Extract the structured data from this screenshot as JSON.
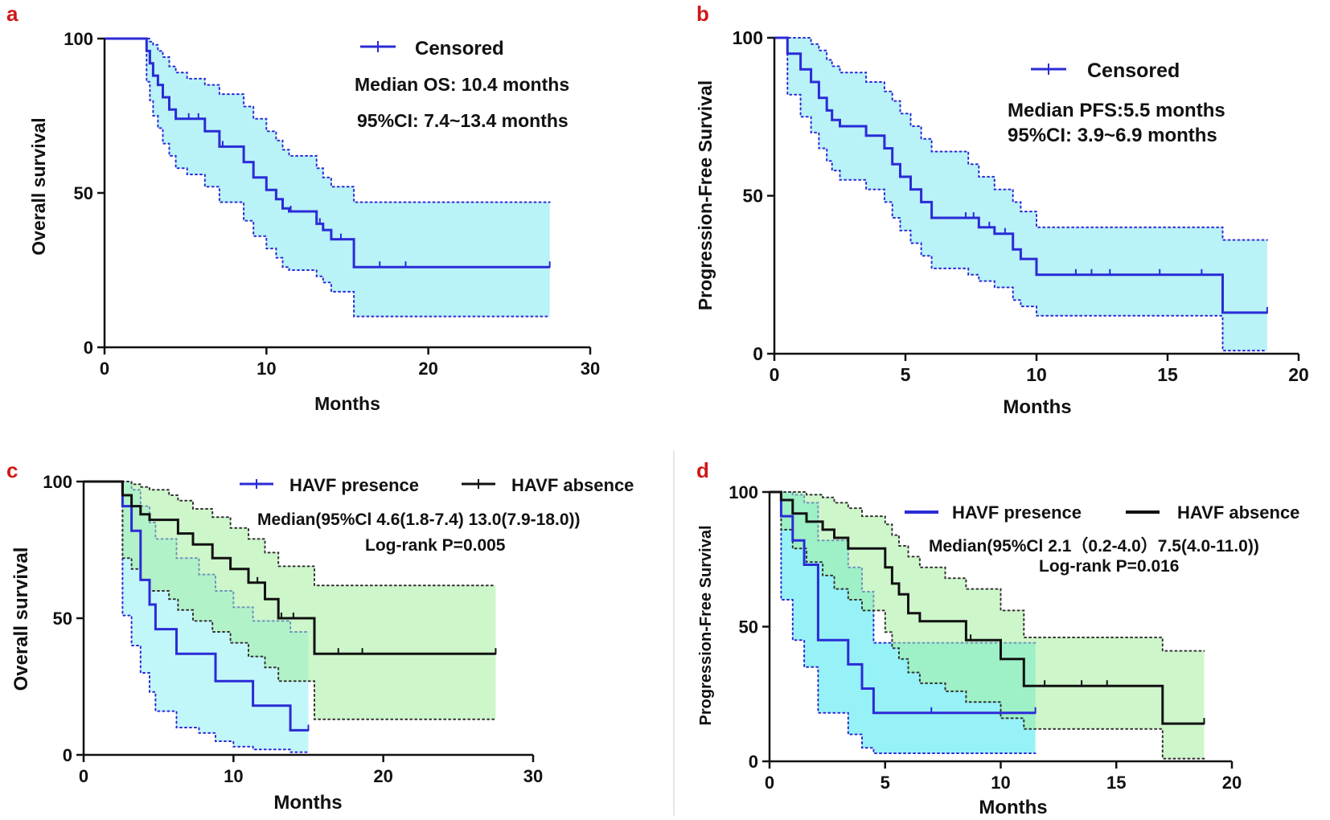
{
  "colors": {
    "blue": "#2b2bd6",
    "black": "#111111",
    "band_cyan": "#7fe7f0",
    "band_green": "#a6efa0",
    "band_teal": "#3fd4c0",
    "panel_letter": "#d01818",
    "axis": "#111111",
    "divider": "#cccccc"
  },
  "chart_data": [
    {
      "panel": "a",
      "type": "line",
      "subtype": "kaplan-meier",
      "ylabel": "Overall survival",
      "xlabel": "Months",
      "xlim": [
        0,
        30
      ],
      "ylim": [
        0,
        100
      ],
      "xticks": [
        "0",
        "10",
        "20",
        "30"
      ],
      "yticks": [
        "0",
        "50",
        "100"
      ],
      "legend": [
        "Censored"
      ],
      "annotations": [
        "Median OS: 10.4 months",
        "95%CI: 7.4~13.4 months"
      ],
      "series": [
        {
          "name": "Censored",
          "color": "#2b2bd6",
          "band_color": "#7fe7f0",
          "x": [
            0,
            2.6,
            2.8,
            3.0,
            3.3,
            3.6,
            4.0,
            4.4,
            5.1,
            6.2,
            7.1,
            8.6,
            9.2,
            10.0,
            10.6,
            11.0,
            11.4,
            13.1,
            13.5,
            14.0,
            15.4,
            27.5
          ],
          "y": [
            100,
            96,
            92,
            88,
            85,
            81,
            77,
            74,
            74,
            70,
            65,
            60,
            55,
            51,
            48,
            45,
            44,
            40,
            38,
            35,
            26,
            26
          ],
          "ci_upper": [
            100,
            100,
            99,
            98,
            96,
            94,
            91,
            89,
            87,
            85,
            82,
            78,
            74,
            70,
            67,
            64,
            62,
            58,
            55,
            52,
            47,
            47
          ],
          "ci_lower": [
            100,
            86,
            80,
            75,
            71,
            66,
            62,
            58,
            56,
            52,
            47,
            41,
            36,
            32,
            29,
            26,
            25,
            23,
            21,
            18,
            10,
            10
          ],
          "censored_x": [
            5.2,
            5.8,
            7.3,
            11.5,
            13.3,
            14.6,
            17.0,
            18.6,
            27.5
          ]
        }
      ]
    },
    {
      "panel": "b",
      "type": "line",
      "subtype": "kaplan-meier",
      "ylabel": "Progression-Free Survival",
      "xlabel": "Months",
      "xlim": [
        0,
        20
      ],
      "ylim": [
        0,
        100
      ],
      "xticks": [
        "0",
        "5",
        "10",
        "15",
        "20"
      ],
      "yticks": [
        "0",
        "50",
        "100"
      ],
      "legend": [
        "Censored"
      ],
      "annotations": [
        "Median PFS:5.5 months",
        "95%CI: 3.9~6.9 months"
      ],
      "series": [
        {
          "name": "Censored",
          "color": "#2b2bd6",
          "band_color": "#7fe7f0",
          "x": [
            0,
            0.5,
            1.0,
            1.4,
            1.7,
            2.0,
            2.2,
            2.5,
            3.5,
            4.2,
            4.5,
            4.8,
            5.2,
            5.6,
            6.0,
            7.4,
            7.8,
            8.4,
            9.1,
            9.4,
            10.0,
            17.1,
            18.8
          ],
          "y": [
            100,
            95,
            90,
            86,
            81,
            77,
            74,
            72,
            69,
            65,
            60,
            56,
            52,
            48,
            43,
            43,
            40,
            38,
            33,
            30,
            25,
            13,
            13
          ],
          "ci_upper": [
            100,
            100,
            100,
            98,
            96,
            93,
            91,
            89,
            86,
            83,
            80,
            76,
            72,
            68,
            64,
            60,
            56,
            52,
            48,
            45,
            40,
            36,
            36
          ],
          "ci_lower": [
            100,
            82,
            75,
            70,
            65,
            61,
            58,
            55,
            52,
            48,
            43,
            39,
            35,
            31,
            27,
            25,
            23,
            21,
            17,
            15,
            12,
            1,
            1
          ],
          "censored_x": [
            7.3,
            7.6,
            8.2,
            8.8,
            11.5,
            12.1,
            12.8,
            14.7,
            16.3,
            18.8
          ]
        }
      ]
    },
    {
      "panel": "c",
      "type": "line",
      "subtype": "kaplan-meier",
      "ylabel": "Overall survival",
      "xlabel": "Months",
      "xlim": [
        0,
        30
      ],
      "ylim": [
        0,
        100
      ],
      "xticks": [
        "0",
        "10",
        "20",
        "30"
      ],
      "yticks": [
        "0",
        "50",
        "100"
      ],
      "legend": [
        "HAVF presence",
        "HAVF absence"
      ],
      "annotations": [
        "Median(95%Cl 4.6(1.8-7.4) 13.0(7.9-18.0))",
        "Log-rank P=0.005"
      ],
      "series": [
        {
          "name": "HAVF presence",
          "color": "#2b2bd6",
          "band_color": "#8ff0f5",
          "x": [
            0,
            2.6,
            3.2,
            3.8,
            4.4,
            4.8,
            6.2,
            7.7,
            8.8,
            10.0,
            11.3,
            13.8,
            15.0
          ],
          "y": [
            100,
            91,
            82,
            64,
            55,
            46,
            37,
            37,
            27,
            27,
            18,
            9,
            9
          ],
          "ci_upper": [
            100,
            100,
            97,
            91,
            85,
            79,
            72,
            66,
            60,
            54,
            49,
            45,
            45
          ],
          "ci_lower": [
            100,
            51,
            40,
            30,
            23,
            16,
            10,
            8,
            5,
            3,
            2,
            1,
            1
          ],
          "censored_x": [
            15.0
          ]
        },
        {
          "name": "HAVF absence",
          "color": "#111111",
          "band_color": "#a6efa0",
          "x": [
            0,
            2.6,
            3.2,
            3.8,
            4.4,
            5.7,
            6.3,
            7.3,
            8.6,
            9.8,
            11.0,
            12.1,
            13.0,
            15.4,
            27.5
          ],
          "y": [
            100,
            95,
            91,
            88,
            86,
            86,
            81,
            77,
            72,
            68,
            63,
            57,
            50,
            37,
            37
          ],
          "ci_upper": [
            100,
            100,
            99,
            98,
            97,
            95,
            93,
            90,
            87,
            83,
            79,
            74,
            69,
            62,
            62
          ],
          "ci_lower": [
            100,
            72,
            68,
            64,
            60,
            57,
            53,
            49,
            45,
            41,
            36,
            32,
            27,
            13,
            13
          ],
          "censored_x": [
            11.6,
            13.2,
            14.0,
            17.0,
            18.6,
            27.5
          ]
        }
      ]
    },
    {
      "panel": "d",
      "type": "line",
      "subtype": "kaplan-meier",
      "ylabel": "Progression-Free Survival",
      "xlabel": "Months",
      "xlim": [
        0,
        20
      ],
      "ylim": [
        0,
        100
      ],
      "xticks": [
        "0",
        "5",
        "10",
        "15",
        "20"
      ],
      "yticks": [
        "0",
        "50",
        "100"
      ],
      "legend": [
        "HAVF presence",
        "HAVF absence"
      ],
      "annotations": [
        "Median(95%Cl 2.1（0.2-4.0）7.5(4.0-11.0))",
        "Log-rank P=0.016"
      ],
      "series": [
        {
          "name": "HAVF presence",
          "color": "#2b2bd6",
          "band_color": "#3fe7ef",
          "x": [
            0,
            0.5,
            1.0,
            1.5,
            2.1,
            3.4,
            4.0,
            4.5,
            11.5
          ],
          "y": [
            100,
            91,
            82,
            73,
            45,
            36,
            27,
            18,
            18
          ],
          "ci_upper": [
            100,
            100,
            99,
            96,
            82,
            72,
            63,
            44,
            44
          ],
          "ci_lower": [
            100,
            60,
            45,
            35,
            18,
            10,
            5,
            3,
            3
          ],
          "censored_x": [
            7.0,
            11.5
          ]
        },
        {
          "name": "HAVF absence",
          "color": "#111111",
          "band_color": "#a6efa0",
          "x": [
            0,
            0.5,
            1.0,
            1.6,
            2.3,
            2.8,
            3.4,
            4.0,
            5.0,
            5.3,
            5.6,
            6.0,
            6.5,
            7.6,
            8.5,
            10.0,
            11.0,
            17.0,
            18.8
          ],
          "y": [
            100,
            97,
            92,
            89,
            86,
            83,
            79,
            79,
            72,
            66,
            62,
            55,
            52,
            52,
            45,
            38,
            28,
            14,
            14
          ],
          "ci_upper": [
            100,
            100,
            100,
            99,
            98,
            96,
            94,
            91,
            88,
            84,
            80,
            76,
            72,
            68,
            64,
            56,
            46,
            41,
            41
          ],
          "ci_lower": [
            100,
            86,
            79,
            74,
            69,
            64,
            60,
            56,
            48,
            42,
            38,
            33,
            29,
            26,
            22,
            16,
            12,
            1,
            1
          ],
          "censored_x": [
            8.7,
            11.9,
            13.5,
            14.6,
            18.8
          ]
        }
      ]
    }
  ]
}
